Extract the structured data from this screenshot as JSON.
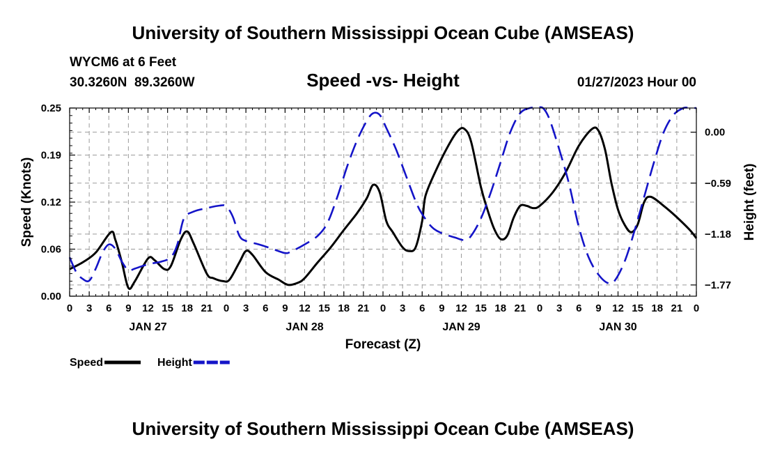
{
  "chart_data": {
    "type": "line",
    "title": "University of Southern Mississippi Ocean Cube (AMSEAS)",
    "footer_title": "University of Southern Mississippi Ocean Cube (AMSEAS)",
    "station": "WYCM6 at 6 Feet",
    "coordinates": "30.3260N  89.3260W",
    "subtitle": "Speed -vs- Height",
    "datetime": "01/27/2023 Hour 00",
    "xlabel": "Forecast (Z)",
    "ylabel_left": "Speed (Knots)",
    "ylabel_right": "Height (feet)",
    "xlim_hours": [
      0,
      96
    ],
    "ylim_left": [
      0,
      0.25
    ],
    "ylim_right": [
      -1.9,
      0.28
    ],
    "yticks_left": [
      {
        "value": 0.0,
        "label": "0.00"
      },
      {
        "value": 0.0625,
        "label": "0.06"
      },
      {
        "value": 0.125,
        "label": "0.12"
      },
      {
        "value": 0.1875,
        "label": "0.19"
      },
      {
        "value": 0.25,
        "label": "0.25"
      }
    ],
    "yticks_right": [
      {
        "value": 0.0,
        "label": "0.00"
      },
      {
        "value": -0.59,
        "label": "−0.59"
      },
      {
        "value": -1.18,
        "label": "−1.18"
      },
      {
        "value": -1.77,
        "label": "−1.77"
      }
    ],
    "x_tick_labels": [
      "0",
      "3",
      "6",
      "9",
      "12",
      "15",
      "18",
      "21",
      "0",
      "3",
      "6",
      "9",
      "12",
      "15",
      "18",
      "21",
      "0",
      "3",
      "6",
      "9",
      "12",
      "15",
      "18",
      "21",
      "0",
      "3",
      "6",
      "9",
      "12",
      "15",
      "18",
      "21",
      "0"
    ],
    "x_tick_step_hours": 3,
    "day_labels": [
      {
        "label": "JAN 27",
        "hour": 12
      },
      {
        "label": "JAN 28",
        "hour": 36
      },
      {
        "label": "JAN 29",
        "hour": 60
      },
      {
        "label": "JAN 30",
        "hour": 84
      }
    ],
    "legend": [
      {
        "label": "Speed",
        "color": "#000000",
        "style": "solid"
      },
      {
        "label": "Height",
        "color": "#1414c8",
        "style": "dashed"
      }
    ],
    "series": [
      {
        "name": "Speed",
        "axis": "left",
        "color": "#000000",
        "style": "solid",
        "points": [
          [
            0,
            0.036
          ],
          [
            2,
            0.045
          ],
          [
            4,
            0.058
          ],
          [
            6.3,
            0.085
          ],
          [
            7,
            0.075
          ],
          [
            8,
            0.045
          ],
          [
            9,
            0.011
          ],
          [
            10,
            0.02
          ],
          [
            12,
            0.05
          ],
          [
            13,
            0.048
          ],
          [
            14.5,
            0.036
          ],
          [
            15.5,
            0.04
          ],
          [
            17,
            0.075
          ],
          [
            18,
            0.086
          ],
          [
            19,
            0.07
          ],
          [
            21,
            0.03
          ],
          [
            22,
            0.024
          ],
          [
            23.5,
            0.02
          ],
          [
            24.5,
            0.022
          ],
          [
            26,
            0.045
          ],
          [
            27,
            0.06
          ],
          [
            28,
            0.055
          ],
          [
            30,
            0.032
          ],
          [
            32,
            0.022
          ],
          [
            33.5,
            0.015
          ],
          [
            35,
            0.018
          ],
          [
            36,
            0.024
          ],
          [
            38,
            0.045
          ],
          [
            40,
            0.065
          ],
          [
            42,
            0.088
          ],
          [
            44,
            0.11
          ],
          [
            45.5,
            0.13
          ],
          [
            46.5,
            0.148
          ],
          [
            47.5,
            0.138
          ],
          [
            48.5,
            0.1
          ],
          [
            49.5,
            0.085
          ],
          [
            51,
            0.065
          ],
          [
            52,
            0.06
          ],
          [
            53,
            0.065
          ],
          [
            54,
            0.1
          ],
          [
            54.5,
            0.133
          ],
          [
            56,
            0.165
          ],
          [
            58,
            0.2
          ],
          [
            59.5,
            0.22
          ],
          [
            60.5,
            0.222
          ],
          [
            61.5,
            0.205
          ],
          [
            63,
            0.145
          ],
          [
            64,
            0.115
          ],
          [
            65,
            0.09
          ],
          [
            66,
            0.076
          ],
          [
            67,
            0.08
          ],
          [
            68,
            0.104
          ],
          [
            69,
            0.12
          ],
          [
            70,
            0.12
          ],
          [
            71,
            0.117
          ],
          [
            72,
            0.12
          ],
          [
            74,
            0.138
          ],
          [
            76,
            0.165
          ],
          [
            78,
            0.2
          ],
          [
            80,
            0.222
          ],
          [
            81,
            0.22
          ],
          [
            82,
            0.195
          ],
          [
            83,
            0.15
          ],
          [
            84,
            0.115
          ],
          [
            85,
            0.095
          ],
          [
            86,
            0.085
          ],
          [
            87,
            0.095
          ],
          [
            88,
            0.125
          ],
          [
            89,
            0.132
          ],
          [
            91,
            0.12
          ],
          [
            93,
            0.105
          ],
          [
            95,
            0.088
          ],
          [
            96,
            0.077
          ]
        ]
      },
      {
        "name": "Height",
        "axis": "right",
        "color": "#1414c8",
        "style": "dashed",
        "points": [
          [
            0,
            -1.45
          ],
          [
            1,
            -1.62
          ],
          [
            2,
            -1.7
          ],
          [
            3,
            -1.72
          ],
          [
            4,
            -1.58
          ],
          [
            5,
            -1.4
          ],
          [
            6,
            -1.3
          ],
          [
            7,
            -1.35
          ],
          [
            8,
            -1.5
          ],
          [
            9,
            -1.6
          ],
          [
            10,
            -1.58
          ],
          [
            12,
            -1.53
          ],
          [
            14,
            -1.5
          ],
          [
            15.5,
            -1.45
          ],
          [
            16.5,
            -1.3
          ],
          [
            17.5,
            -1.0
          ],
          [
            19,
            -0.92
          ],
          [
            21,
            -0.88
          ],
          [
            23,
            -0.85
          ],
          [
            24,
            -0.86
          ],
          [
            25,
            -0.98
          ],
          [
            26,
            -1.2
          ],
          [
            27,
            -1.26
          ],
          [
            29,
            -1.3
          ],
          [
            31,
            -1.35
          ],
          [
            33,
            -1.4
          ],
          [
            34,
            -1.38
          ],
          [
            36,
            -1.3
          ],
          [
            38,
            -1.2
          ],
          [
            39.5,
            -1.05
          ],
          [
            41,
            -0.75
          ],
          [
            42.5,
            -0.4
          ],
          [
            44,
            -0.1
          ],
          [
            45.5,
            0.13
          ],
          [
            46.5,
            0.22
          ],
          [
            47.5,
            0.2
          ],
          [
            48.5,
            0.05
          ],
          [
            50,
            -0.2
          ],
          [
            51.5,
            -0.5
          ],
          [
            53,
            -0.8
          ],
          [
            54,
            -0.95
          ],
          [
            55.5,
            -1.1
          ],
          [
            57,
            -1.17
          ],
          [
            59,
            -1.22
          ],
          [
            60.5,
            -1.25
          ],
          [
            61.5,
            -1.2
          ],
          [
            63,
            -1.0
          ],
          [
            64.5,
            -0.7
          ],
          [
            66,
            -0.35
          ],
          [
            67.5,
            0.0
          ],
          [
            69,
            0.22
          ],
          [
            70.5,
            0.32
          ],
          [
            71.5,
            0.34
          ],
          [
            72.5,
            0.3
          ],
          [
            73.5,
            0.15
          ],
          [
            75,
            -0.2
          ],
          [
            76.5,
            -0.6
          ],
          [
            78,
            -1.1
          ],
          [
            79.5,
            -1.45
          ],
          [
            81,
            -1.65
          ],
          [
            82.5,
            -1.75
          ],
          [
            83.5,
            -1.72
          ],
          [
            85,
            -1.5
          ],
          [
            86.5,
            -1.15
          ],
          [
            88,
            -0.75
          ],
          [
            89.5,
            -0.35
          ],
          [
            91,
            0.0
          ],
          [
            92.5,
            0.2
          ],
          [
            94,
            0.3
          ],
          [
            95,
            0.32
          ],
          [
            96,
            0.28
          ]
        ]
      }
    ]
  }
}
